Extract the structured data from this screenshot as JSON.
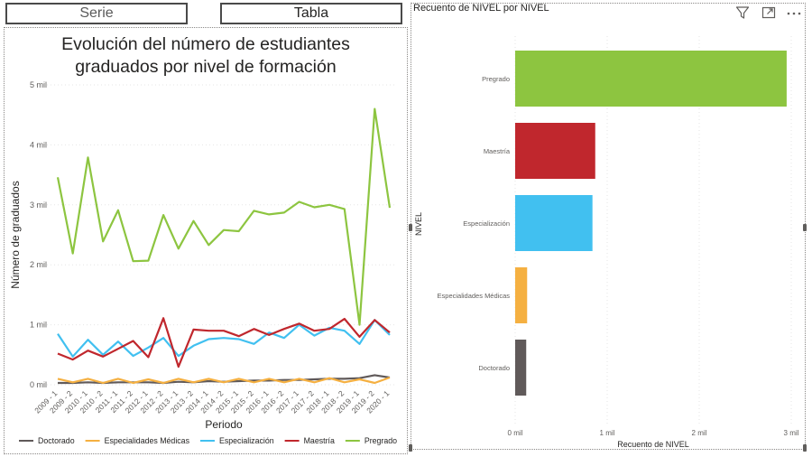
{
  "tabs": [
    {
      "label": "Serie",
      "active": false
    },
    {
      "label": "Tabla",
      "active": true
    }
  ],
  "left_visual": {
    "title_lines": [
      "Evolución del número de estudiantes",
      "graduados por nivel de formación"
    ]
  },
  "right_visual": {
    "header_title": "Recuento de NIVEL por NIVEL",
    "icons": [
      "filter-icon",
      "focus-mode-icon",
      "more-options-icon"
    ]
  },
  "chart_data": [
    {
      "type": "line",
      "title": "Evolución del número de estudiantes graduados por nivel de formación",
      "xlabel": "Periodo",
      "ylabel": "Número de graduados",
      "x": [
        "2009 - 1",
        "2009 - 2",
        "2010 - 1",
        "2010 - 2",
        "2011 - 1",
        "2011 - 2",
        "2012 - 1",
        "2012 - 2",
        "2013 - 1",
        "2013 - 2",
        "2014 - 1",
        "2014 - 2",
        "2015 - 1",
        "2015 - 2",
        "2016 - 1",
        "2016 - 2",
        "2017 - 1",
        "2017 - 2",
        "2018 - 1",
        "2018 - 2",
        "2019 - 1",
        "2019 - 2",
        "2020 - 1"
      ],
      "x_tick_labels": [
        "2009 - 1",
        "2009 - 2",
        "2010 - 1",
        "2010 - 2",
        "2011 - 1",
        "2011 - 2",
        "2012 - 1",
        "2012 - 2",
        "2013 - 1",
        "2013 - 2",
        "2014 - 1",
        "2014 - 2",
        "2015 - 1",
        "2015 - 2",
        "2016 - 1",
        "2016 - 2",
        "2017 - 1",
        "2017 - 2",
        "2018 - 1",
        "2018 - 2",
        "2019 - 1",
        "2019 - 2",
        "2020 - 1"
      ],
      "y_ticks": [
        0,
        1000,
        2000,
        3000,
        4000,
        5000
      ],
      "y_tick_labels": [
        "0 mil",
        "1 mil",
        "2 mil",
        "3 mil",
        "4 mil",
        "5 mil"
      ],
      "ylim": [
        0,
        5000
      ],
      "grid": true,
      "legend_position": "bottom",
      "series": [
        {
          "name": "Doctorado",
          "color": "#605a5a",
          "values": [
            30,
            30,
            40,
            30,
            40,
            40,
            40,
            30,
            50,
            40,
            60,
            50,
            60,
            70,
            70,
            80,
            80,
            90,
            100,
            100,
            110,
            160,
            120
          ]
        },
        {
          "name": "Especialidades Médicas",
          "color": "#f5b041",
          "values": [
            100,
            40,
            100,
            30,
            100,
            30,
            90,
            30,
            100,
            40,
            100,
            40,
            100,
            40,
            100,
            40,
            100,
            40,
            110,
            40,
            90,
            30,
            120
          ]
        },
        {
          "name": "Especialización",
          "color": "#41c0f0",
          "values": [
            850,
            470,
            750,
            500,
            720,
            480,
            620,
            780,
            480,
            650,
            760,
            780,
            760,
            680,
            870,
            780,
            1000,
            820,
            950,
            900,
            680,
            1080,
            830
          ]
        },
        {
          "name": "Maestría",
          "color": "#c0272d",
          "values": [
            520,
            420,
            570,
            470,
            600,
            730,
            460,
            1110,
            300,
            920,
            900,
            900,
            810,
            930,
            830,
            930,
            1020,
            900,
            930,
            1100,
            800,
            1080,
            870
          ]
        },
        {
          "name": "Pregrado",
          "color": "#8dc540",
          "values": [
            3460,
            2190,
            3790,
            2390,
            2910,
            2060,
            2070,
            2830,
            2270,
            2730,
            2330,
            2580,
            2560,
            2900,
            2840,
            2870,
            3050,
            2960,
            3000,
            2930,
            1000,
            4600,
            2950
          ]
        }
      ]
    },
    {
      "type": "bar",
      "orientation": "horizontal",
      "title": "Recuento de NIVEL por NIVEL",
      "xlabel": "Recuento de NIVEL",
      "ylabel": "NIVEL",
      "categories": [
        "Pregrado",
        "Maestría",
        "Especialización",
        "Especialidades Médicas",
        "Doctorado"
      ],
      "values": [
        2950,
        870,
        840,
        130,
        120
      ],
      "colors": [
        "#8dc540",
        "#c0272d",
        "#41c0f0",
        "#f5b041",
        "#605a5a"
      ],
      "x_ticks": [
        0,
        1000,
        2000,
        3000
      ],
      "x_tick_labels": [
        "0 mil",
        "1 mil",
        "2 mil",
        "3 mil"
      ],
      "xlim": [
        0,
        3000
      ],
      "grid": true
    }
  ]
}
